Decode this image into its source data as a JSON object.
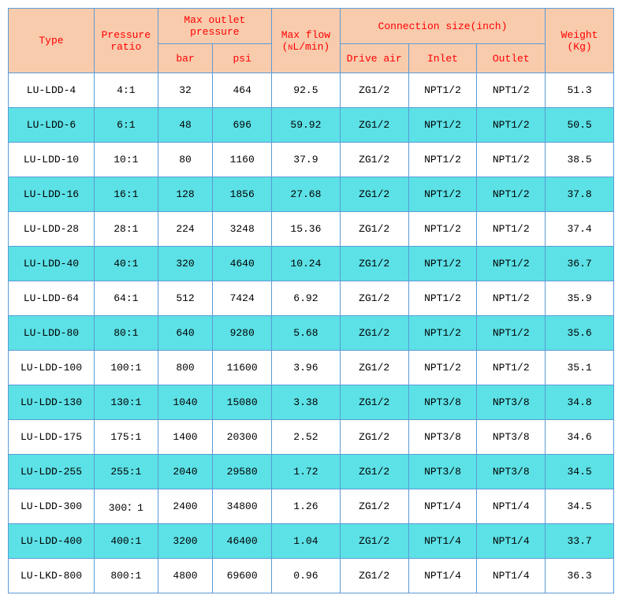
{
  "table": {
    "headers": {
      "type": "Type",
      "ratio": "Pressure ratio",
      "max_outlet_pressure": "Max outlet pressure",
      "bar": "bar",
      "psi": "psi",
      "max_flow": "Max flow (NL/min)",
      "connection": "Connection size(inch)",
      "drive_air": "Drive air",
      "inlet": "Inlet",
      "outlet": "Outlet",
      "weight": "Weight (Kg)"
    },
    "columns": [
      "type",
      "ratio",
      "bar",
      "psi",
      "flow",
      "drive",
      "inlet",
      "outlet",
      "weight"
    ],
    "rows": [
      {
        "type": "LU-LDD-4",
        "ratio": "4:1",
        "bar": "32",
        "psi": "464",
        "flow": "92.5",
        "drive": "ZG1/2",
        "inlet": "NPT1/2",
        "outlet": "NPT1/2",
        "weight": "51.3"
      },
      {
        "type": "LU-LDD-6",
        "ratio": "6:1",
        "bar": "48",
        "psi": "696",
        "flow": "59.92",
        "drive": "ZG1/2",
        "inlet": "NPT1/2",
        "outlet": "NPT1/2",
        "weight": "50.5"
      },
      {
        "type": "LU-LDD-10",
        "ratio": "10:1",
        "bar": "80",
        "psi": "1160",
        "flow": "37.9",
        "drive": "ZG1/2",
        "inlet": "NPT1/2",
        "outlet": "NPT1/2",
        "weight": "38.5"
      },
      {
        "type": "LU-LDD-16",
        "ratio": "16:1",
        "bar": "128",
        "psi": "1856",
        "flow": "27.68",
        "drive": "ZG1/2",
        "inlet": "NPT1/2",
        "outlet": "NPT1/2",
        "weight": "37.8"
      },
      {
        "type": "LU-LDD-28",
        "ratio": "28:1",
        "bar": "224",
        "psi": "3248",
        "flow": "15.36",
        "drive": "ZG1/2",
        "inlet": "NPT1/2",
        "outlet": "NPT1/2",
        "weight": "37.4"
      },
      {
        "type": "LU-LDD-40",
        "ratio": "40:1",
        "bar": "320",
        "psi": "4640",
        "flow": "10.24",
        "drive": "ZG1/2",
        "inlet": "NPT1/2",
        "outlet": "NPT1/2",
        "weight": "36.7"
      },
      {
        "type": "LU-LDD-64",
        "ratio": "64:1",
        "bar": "512",
        "psi": "7424",
        "flow": "6.92",
        "drive": "ZG1/2",
        "inlet": "NPT1/2",
        "outlet": "NPT1/2",
        "weight": "35.9"
      },
      {
        "type": "LU-LDD-80",
        "ratio": "80:1",
        "bar": "640",
        "psi": "9280",
        "flow": "5.68",
        "drive": "ZG1/2",
        "inlet": "NPT1/2",
        "outlet": "NPT1/2",
        "weight": "35.6"
      },
      {
        "type": "LU-LDD-100",
        "ratio": "100:1",
        "bar": "800",
        "psi": "11600",
        "flow": "3.96",
        "drive": "ZG1/2",
        "inlet": "NPT1/2",
        "outlet": "NPT1/2",
        "weight": "35.1"
      },
      {
        "type": "LU-LDD-130",
        "ratio": "130:1",
        "bar": "1040",
        "psi": "15080",
        "flow": "3.38",
        "drive": "ZG1/2",
        "inlet": "NPT3/8",
        "outlet": "NPT3/8",
        "weight": "34.8"
      },
      {
        "type": "LU-LDD-175",
        "ratio": "175:1",
        "bar": "1400",
        "psi": "20300",
        "flow": "2.52",
        "drive": "ZG1/2",
        "inlet": "NPT3/8",
        "outlet": "NPT3/8",
        "weight": "34.6"
      },
      {
        "type": "LU-LDD-255",
        "ratio": "255:1",
        "bar": "2040",
        "psi": "29580",
        "flow": "1.72",
        "drive": "ZG1/2",
        "inlet": "NPT3/8",
        "outlet": "NPT3/8",
        "weight": "34.5"
      },
      {
        "type": "LU-LDD-300",
        "ratio": "300：1",
        "bar": "2400",
        "psi": "34800",
        "flow": "1.26",
        "drive": "ZG1/2",
        "inlet": "NPT1/4",
        "outlet": "NPT1/4",
        "weight": "34.5"
      },
      {
        "type": "LU-LDD-400",
        "ratio": "400:1",
        "bar": "3200",
        "psi": "46400",
        "flow": "1.04",
        "drive": "ZG1/2",
        "inlet": "NPT1/4",
        "outlet": "NPT1/4",
        "weight": "33.7"
      },
      {
        "type": "LU-LKD-800",
        "ratio": "800:1",
        "bar": "4800",
        "psi": "69600",
        "flow": "0.96",
        "drive": "ZG1/2",
        "inlet": "NPT1/4",
        "outlet": "NPT1/4",
        "weight": "36.3"
      }
    ],
    "header_bg": "#f8cbad",
    "header_fg": "#ff0000",
    "row_odd_bg": "#ffffff",
    "row_even_bg": "#5ce1e6",
    "border_color": "#5b9bd5",
    "cell_fg": "#000000",
    "font_family": "Courier New / monospace",
    "header_fontsize": 13,
    "cell_fontsize": 13
  }
}
